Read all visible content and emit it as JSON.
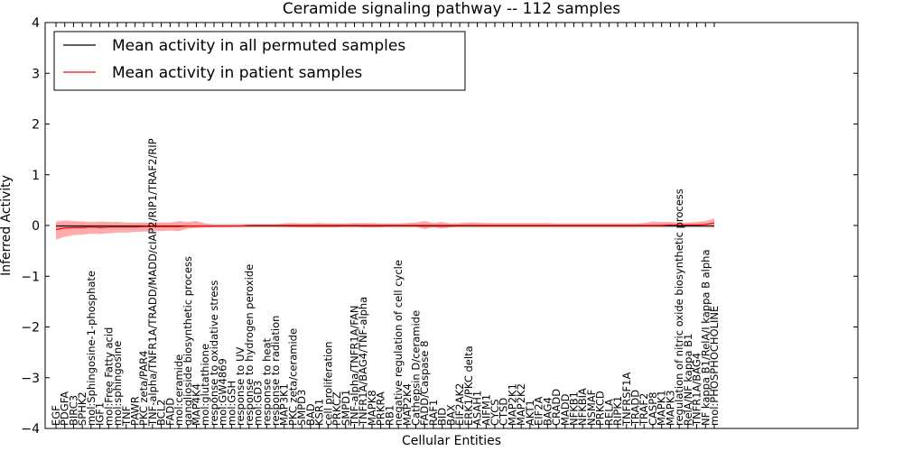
{
  "chart_data": {
    "type": "line",
    "title": "Ceramide signaling pathway -- 112 samples",
    "xlabel": "Cellular Entities",
    "ylabel": "Inferred Activity",
    "ylim": [
      -4,
      4
    ],
    "yticks": [
      -4,
      -3,
      -2,
      -1,
      0,
      1,
      2,
      3,
      4
    ],
    "legend": {
      "position": "top-left"
    },
    "categories": [
      "EGF",
      "PDGFA",
      "BIRC3",
      "SPHK2",
      "mol:Sphingosine-1-phosphate",
      "IGF1",
      "mol:Free Fatty acid",
      "mol:sphingosine",
      "TNF",
      "PAWR",
      "PKC zeta/PAR4",
      "TNF-alpha/TNFR1A/TRADD/MADD/cIAP2/RIP1/TRAF2/RIP",
      "BCL2",
      "FADD",
      "mol:ceramide",
      "ganglioside biosynthetic process",
      "MAP4K4",
      "mol:glutathione",
      "response to oxidative stress",
      "mol:GW4869",
      "mol:GSH",
      "response to UV",
      "response to hydrogen peroxide",
      "mol:GD3",
      "response to heat",
      "response to radiation",
      "MAP3K1",
      "PKC zeta/ceramide",
      "SMPD3",
      "BAD",
      "KSR1",
      "cell proliferation",
      "PRKCZ",
      "SMPD1",
      "TNF-alpha/TNFR1A/FAN",
      "TNFR1A/BAG4/TNF-alpha",
      "MAPK8",
      "PRKRA",
      "RB1",
      "negative regulation of cell cycle",
      "MAP2K4",
      "Cathepsin D/ceramide",
      "FADD/Caspase 8",
      "RAF1",
      "BID",
      "BAX",
      "EIF2AK2",
      "ERK1/PKC delta",
      "ASAH1",
      "AIFM1",
      "CYCS",
      "CTSD",
      "MAP2K1",
      "MAP2K2",
      "AKT1",
      "EIF2A",
      "BAG4",
      "CRADD",
      "MADD",
      "NFKB1",
      "NFKBIA",
      "NSMAF",
      "PRKCD",
      "RELA",
      "RIPK1",
      "TNFRSF1A",
      "TRADD",
      "TRAF2",
      "CASP8",
      "MAPK1",
      "MAPK3",
      "regulation of nitric oxide biosynthetic process",
      "RelA/NF kappa B1",
      "TNFR1A/BAG4",
      "NF kappa B1/RelA/I kappa B alpha",
      "mol:PHOSPHOCHOLINE"
    ],
    "series": [
      {
        "name": "Mean activity in all permuted samples",
        "color": "#000000",
        "values": [
          -0.01,
          -0.01,
          -0.01,
          -0.01,
          -0.01,
          -0.01,
          -0.01,
          -0.01,
          -0.01,
          -0.01,
          -0.01,
          -0.01,
          -0.01,
          -0.01,
          -0.01,
          -0.01,
          -0.01,
          -0.01,
          -0.01,
          -0.01,
          -0.01,
          -0.01,
          -0.01,
          -0.01,
          -0.01,
          -0.01,
          -0.01,
          -0.01,
          -0.01,
          -0.01,
          -0.01,
          -0.01,
          -0.01,
          -0.01,
          -0.01,
          -0.01,
          -0.01,
          -0.01,
          -0.01,
          -0.01,
          -0.01,
          -0.01,
          -0.01,
          -0.01,
          -0.01,
          -0.01,
          -0.01,
          -0.01,
          -0.01,
          -0.01,
          -0.01,
          -0.01,
          -0.01,
          -0.01,
          -0.01,
          -0.01,
          -0.01,
          -0.01,
          -0.01,
          -0.01,
          -0.01,
          -0.01,
          -0.01,
          -0.01,
          -0.01,
          -0.01,
          -0.01,
          -0.01,
          -0.01,
          -0.01,
          -0.01,
          -0.01,
          -0.01,
          -0.01,
          -0.01,
          -0.01
        ],
        "band": {
          "color": "#b0b0b0",
          "lower": [
            -0.06,
            -0.05,
            -0.05,
            -0.05,
            -0.05,
            -0.05,
            -0.05,
            -0.05,
            -0.05,
            -0.05,
            -0.05,
            -0.05,
            -0.05,
            -0.05,
            -0.05,
            -0.05,
            -0.05,
            -0.05,
            -0.05,
            -0.05,
            -0.05,
            -0.05,
            -0.05,
            -0.05,
            -0.05,
            -0.05,
            -0.05,
            -0.05,
            -0.05,
            -0.05,
            -0.05,
            -0.05,
            -0.05,
            -0.05,
            -0.05,
            -0.05,
            -0.05,
            -0.05,
            -0.05,
            -0.05,
            -0.05,
            -0.05,
            -0.05,
            -0.05,
            -0.05,
            -0.05,
            -0.05,
            -0.05,
            -0.05,
            -0.05,
            -0.05,
            -0.05,
            -0.05,
            -0.05,
            -0.05,
            -0.05,
            -0.05,
            -0.05,
            -0.05,
            -0.05,
            -0.05,
            -0.05,
            -0.05,
            -0.05,
            -0.05,
            -0.05,
            -0.05,
            -0.05,
            -0.05,
            -0.05,
            -0.05,
            -0.05,
            -0.05,
            -0.05,
            -0.05,
            -0.06
          ],
          "upper": [
            0.04,
            0.04,
            0.04,
            0.04,
            0.04,
            0.04,
            0.04,
            0.04,
            0.04,
            0.04,
            0.04,
            0.04,
            0.04,
            0.04,
            0.04,
            0.04,
            0.04,
            0.04,
            0.04,
            0.04,
            0.04,
            0.04,
            0.04,
            0.04,
            0.04,
            0.04,
            0.04,
            0.04,
            0.04,
            0.04,
            0.04,
            0.04,
            0.04,
            0.04,
            0.04,
            0.04,
            0.04,
            0.04,
            0.04,
            0.04,
            0.04,
            0.04,
            0.04,
            0.04,
            0.04,
            0.04,
            0.04,
            0.04,
            0.04,
            0.04,
            0.04,
            0.04,
            0.04,
            0.04,
            0.04,
            0.04,
            0.04,
            0.04,
            0.04,
            0.04,
            0.04,
            0.04,
            0.04,
            0.04,
            0.04,
            0.04,
            0.04,
            0.04,
            0.04,
            0.04,
            0.04,
            0.04,
            0.04,
            0.04,
            0.04,
            0.04
          ]
        }
      },
      {
        "name": "Mean activity in patient samples",
        "color": "#ff0000",
        "values": [
          -0.08,
          -0.05,
          -0.04,
          -0.04,
          -0.03,
          -0.04,
          -0.03,
          -0.03,
          -0.03,
          -0.03,
          -0.02,
          -0.02,
          -0.02,
          -0.02,
          -0.02,
          -0.01,
          -0.01,
          -0.01,
          -0.01,
          -0.01,
          -0.01,
          -0.01,
          0.0,
          0.0,
          0.0,
          0.0,
          0.0,
          0.0,
          0.0,
          0.0,
          0.0,
          0.0,
          0.0,
          0.0,
          0.0,
          0.0,
          0.0,
          0.0,
          0.0,
          0.0,
          0.0,
          0.0,
          0.0,
          0.0,
          0.0,
          0.0,
          0.0,
          0.0,
          0.0,
          0.0,
          0.0,
          0.0,
          0.0,
          0.0,
          0.0,
          0.0,
          0.0,
          0.0,
          0.0,
          0.0,
          0.0,
          0.0,
          0.0,
          0.0,
          0.0,
          0.0,
          0.0,
          0.0,
          0.0,
          0.0,
          0.01,
          0.01,
          0.01,
          0.01,
          0.02,
          0.05
        ],
        "band": {
          "color": "#ff6666",
          "lower": [
            -0.28,
            -0.22,
            -0.19,
            -0.18,
            -0.16,
            -0.17,
            -0.15,
            -0.14,
            -0.14,
            -0.13,
            -0.12,
            -0.11,
            -0.11,
            -0.1,
            -0.11,
            -0.06,
            -0.05,
            -0.04,
            -0.03,
            -0.03,
            -0.02,
            -0.02,
            -0.02,
            -0.02,
            -0.02,
            -0.02,
            -0.02,
            -0.03,
            -0.03,
            -0.03,
            -0.03,
            -0.03,
            -0.03,
            -0.02,
            -0.02,
            -0.03,
            -0.03,
            -0.03,
            -0.02,
            -0.02,
            -0.02,
            -0.02,
            -0.07,
            -0.03,
            -0.06,
            -0.03,
            -0.02,
            -0.02,
            -0.02,
            -0.02,
            -0.02,
            -0.02,
            -0.02,
            -0.02,
            -0.02,
            -0.02,
            -0.02,
            -0.02,
            -0.02,
            -0.02,
            -0.02,
            -0.02,
            -0.02,
            -0.02,
            -0.02,
            -0.02,
            -0.02,
            -0.01,
            -0.01,
            -0.01,
            -0.01,
            -0.01,
            -0.01,
            -0.01,
            -0.01,
            0.0
          ],
          "upper": [
            0.08,
            0.1,
            0.09,
            0.08,
            0.07,
            0.08,
            0.07,
            0.07,
            0.06,
            0.06,
            0.06,
            0.06,
            0.06,
            0.06,
            0.09,
            0.07,
            0.09,
            0.04,
            0.02,
            0.02,
            0.02,
            0.02,
            0.02,
            0.02,
            0.02,
            0.02,
            0.04,
            0.05,
            0.04,
            0.04,
            0.05,
            0.04,
            0.04,
            0.04,
            0.05,
            0.05,
            0.05,
            0.04,
            0.04,
            0.04,
            0.05,
            0.06,
            0.09,
            0.05,
            0.07,
            0.04,
            0.05,
            0.06,
            0.06,
            0.05,
            0.05,
            0.05,
            0.05,
            0.05,
            0.05,
            0.05,
            0.05,
            0.04,
            0.04,
            0.04,
            0.04,
            0.04,
            0.04,
            0.04,
            0.04,
            0.04,
            0.04,
            0.05,
            0.08,
            0.07,
            0.07,
            0.06,
            0.06,
            0.07,
            0.09,
            0.14
          ]
        }
      }
    ]
  }
}
